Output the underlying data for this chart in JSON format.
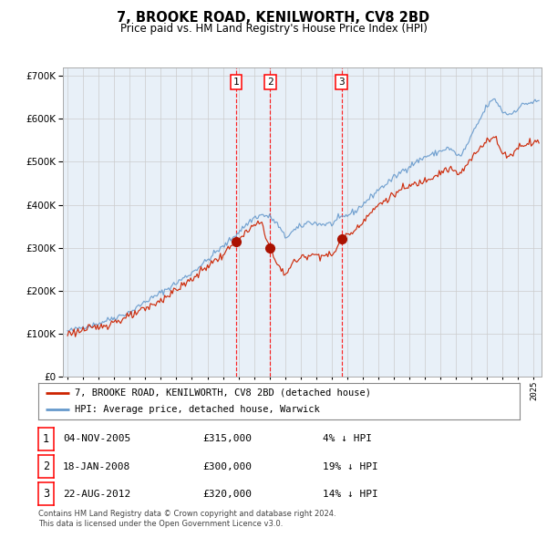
{
  "title": "7, BROOKE ROAD, KENILWORTH, CV8 2BD",
  "subtitle": "Price paid vs. HM Land Registry's House Price Index (HPI)",
  "legend_line1": "7, BROOKE ROAD, KENILWORTH, CV8 2BD (detached house)",
  "legend_line2": "HPI: Average price, detached house, Warwick",
  "transactions": [
    {
      "num": 1,
      "date": "04-NOV-2005",
      "price": 315000,
      "pct": "4% ↓ HPI",
      "x_year": 2005.84
    },
    {
      "num": 2,
      "date": "18-JAN-2008",
      "price": 300000,
      "pct": "19% ↓ HPI",
      "x_year": 2008.04
    },
    {
      "num": 3,
      "date": "22-AUG-2012",
      "price": 320000,
      "pct": "14% ↓ HPI",
      "x_year": 2012.63
    }
  ],
  "hpi_color": "#6699cc",
  "price_color": "#cc2200",
  "dot_color": "#aa1100",
  "bg_color": "#e8f0f8",
  "grid_color": "#cccccc",
  "border_color": "#aaaaaa",
  "ylim": [
    0,
    720000
  ],
  "xlim_start": 1994.7,
  "xlim_end": 2025.5,
  "footnote1": "Contains HM Land Registry data © Crown copyright and database right 2024.",
  "footnote2": "This data is licensed under the Open Government Licence v3.0."
}
